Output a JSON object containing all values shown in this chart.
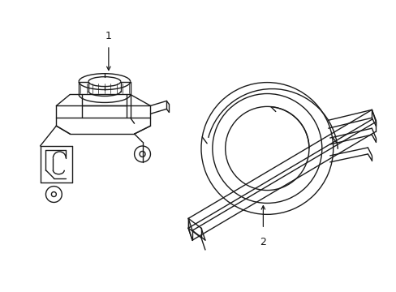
{
  "background_color": "#ffffff",
  "line_color": "#1a1a1a",
  "line_width": 1.0,
  "label_1": "1",
  "label_2": "2",
  "label_fontsize": 9,
  "figsize": [
    4.89,
    3.6
  ],
  "dpi": 100
}
